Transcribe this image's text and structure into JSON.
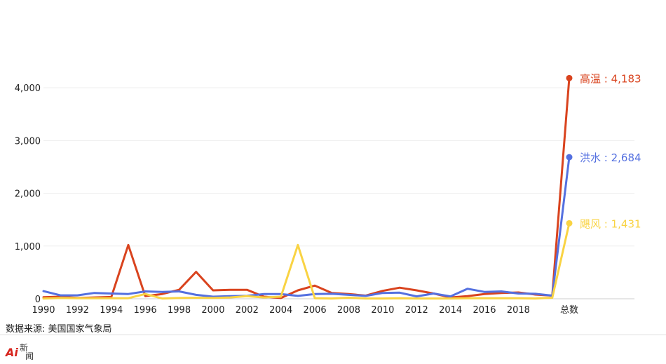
{
  "source_text": "数据来源: 美国国家气象局",
  "chart_data": {
    "type": "line",
    "x": [
      "1990",
      "1991",
      "1992",
      "1993",
      "1994",
      "1995",
      "1996",
      "1997",
      "1998",
      "1999",
      "2000",
      "2001",
      "2002",
      "2003",
      "2004",
      "2005",
      "2006",
      "2007",
      "2008",
      "2009",
      "2010",
      "2011",
      "2012",
      "2013",
      "2014",
      "2015",
      "2016",
      "2017",
      "2018",
      "2019",
      "2020",
      "总数"
    ],
    "x_tick_labels": [
      "1990",
      "1992",
      "1994",
      "1996",
      "1998",
      "2000",
      "2002",
      "2004",
      "2006",
      "2008",
      "2010",
      "2012",
      "2014",
      "2016",
      "2018",
      "总数"
    ],
    "ylim": [
      0,
      4400
    ],
    "y_ticks": [
      0,
      1000,
      2000,
      3000,
      4000
    ],
    "y_tick_labels": [
      "0",
      "1,000",
      "2,000",
      "3,000",
      "4,000"
    ],
    "grid": true,
    "series": [
      {
        "name": "高温",
        "color": "#d9431e",
        "end_label": "高温 : 4,183",
        "values": [
          30,
          40,
          15,
          25,
          35,
          1020,
          50,
          90,
          170,
          510,
          160,
          170,
          170,
          40,
          15,
          160,
          250,
          110,
          90,
          60,
          150,
          210,
          160,
          100,
          25,
          50,
          90,
          110,
          120,
          80,
          60,
          4183
        ]
      },
      {
        "name": "洪水",
        "color": "#5470e0",
        "end_label": "洪水 : 2,684",
        "values": [
          145,
          65,
          65,
          110,
          100,
          90,
          140,
          130,
          140,
          75,
          40,
          50,
          55,
          90,
          90,
          55,
          90,
          95,
          75,
          55,
          110,
          115,
          45,
          100,
          45,
          190,
          130,
          140,
          100,
          95,
          60,
          2684
        ]
      },
      {
        "name": "飓风",
        "color": "#f9d343",
        "end_label": "飓风 : 1,431",
        "values": [
          5,
          15,
          10,
          10,
          10,
          10,
          90,
          5,
          15,
          20,
          15,
          25,
          50,
          25,
          40,
          1020,
          10,
          5,
          20,
          5,
          5,
          10,
          5,
          5,
          5,
          10,
          10,
          10,
          10,
          5,
          20,
          1431
        ]
      }
    ]
  }
}
